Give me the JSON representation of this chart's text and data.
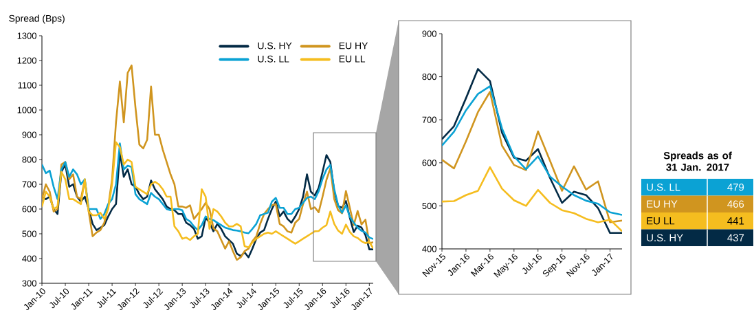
{
  "chart_data": [
    {
      "type": "line",
      "ylabel": "Spread (Bps)",
      "legend": "top right",
      "x": [
        "2010-01",
        "2010-02",
        "2010-03",
        "2010-04",
        "2010-05",
        "2010-06",
        "2010-07",
        "2010-08",
        "2010-09",
        "2010-10",
        "2010-11",
        "2010-12",
        "2011-01",
        "2011-02",
        "2011-03",
        "2011-04",
        "2011-05",
        "2011-06",
        "2011-07",
        "2011-08",
        "2011-09",
        "2011-10",
        "2011-11",
        "2011-12",
        "2012-01",
        "2012-02",
        "2012-03",
        "2012-04",
        "2012-05",
        "2012-06",
        "2012-07",
        "2012-08",
        "2012-09",
        "2012-10",
        "2012-11",
        "2012-12",
        "2013-01",
        "2013-02",
        "2013-03",
        "2013-04",
        "2013-05",
        "2013-06",
        "2013-07",
        "2013-08",
        "2013-09",
        "2013-10",
        "2013-11",
        "2013-12",
        "2014-01",
        "2014-02",
        "2014-03",
        "2014-04",
        "2014-05",
        "2014-06",
        "2014-07",
        "2014-08",
        "2014-09",
        "2014-10",
        "2014-11",
        "2014-12",
        "2015-01",
        "2015-02",
        "2015-03",
        "2015-04",
        "2015-05",
        "2015-06",
        "2015-07",
        "2015-08",
        "2015-09",
        "2015-10",
        "2015-11",
        "2015-12",
        "2016-01",
        "2016-02",
        "2016-03",
        "2016-04",
        "2016-05",
        "2016-06",
        "2016-07",
        "2016-08",
        "2016-09",
        "2016-10",
        "2016-11",
        "2016-12",
        "2017-01",
        "2017-02"
      ],
      "series": [
        {
          "name": "U.S. HY",
          "color": "#032a45",
          "values": [
            650,
            640,
            650,
            600,
            580,
            750,
            780,
            690,
            700,
            650,
            630,
            650,
            600,
            540,
            515,
            525,
            535,
            570,
            600,
            620,
            830,
            730,
            760,
            700,
            690,
            660,
            640,
            650,
            715,
            680,
            660,
            640,
            610,
            600,
            595,
            580,
            580,
            545,
            535,
            520,
            480,
            490,
            565,
            545,
            510,
            540,
            520,
            490,
            475,
            460,
            420,
            410,
            425,
            405,
            440,
            480,
            505,
            515,
            560,
            600,
            630,
            570,
            590,
            560,
            545,
            570,
            600,
            650,
            740,
            670,
            655,
            685,
            750,
            818,
            790,
            670,
            612,
            605,
            632,
            565,
            507,
            533,
            525,
            495,
            437,
            437
          ]
        },
        {
          "name": "EU HY",
          "color": "#d0951f",
          "values": [
            640,
            700,
            670,
            590,
            600,
            780,
            790,
            720,
            740,
            650,
            640,
            720,
            590,
            490,
            505,
            515,
            545,
            610,
            720,
            950,
            1115,
            950,
            1150,
            1180,
            1010,
            860,
            845,
            880,
            1095,
            900,
            900,
            840,
            790,
            740,
            700,
            610,
            610,
            605,
            615,
            560,
            580,
            600,
            625,
            600,
            522,
            510,
            475,
            440,
            470,
            430,
            395,
            405,
            430,
            440,
            470,
            490,
            540,
            580,
            600,
            615,
            620,
            540,
            530,
            510,
            505,
            545,
            560,
            620,
            670,
            600,
            607,
            587,
            650,
            718,
            765,
            640,
            595,
            583,
            673,
            605,
            535,
            592,
            538,
            557,
            462,
            466
          ]
        },
        {
          "name": "U.S. LL",
          "color": "#0ba2d4",
          "values": [
            780,
            745,
            755,
            690,
            640,
            760,
            790,
            730,
            760,
            740,
            700,
            720,
            600,
            600,
            600,
            560,
            580,
            620,
            640,
            700,
            865,
            760,
            775,
            770,
            660,
            640,
            630,
            620,
            665,
            650,
            640,
            620,
            600,
            595,
            600,
            600,
            595,
            560,
            550,
            530,
            515,
            535,
            570,
            560,
            555,
            545,
            535,
            525,
            520,
            515,
            513,
            510,
            505,
            502,
            520,
            540,
            575,
            580,
            585,
            630,
            645,
            605,
            605,
            580,
            580,
            600,
            605,
            625,
            645,
            650,
            640,
            672,
            722,
            760,
            778,
            680,
            615,
            585,
            615,
            568,
            545,
            525,
            512,
            505,
            485,
            479
          ]
        },
        {
          "name": "EU LL",
          "color": "#f5bd1f",
          "values": [
            610,
            670,
            650,
            600,
            610,
            750,
            720,
            640,
            640,
            630,
            620,
            720,
            590,
            575,
            575,
            585,
            560,
            600,
            700,
            870,
            850,
            780,
            800,
            790,
            690,
            680,
            670,
            660,
            700,
            710,
            700,
            680,
            650,
            650,
            530,
            510,
            480,
            485,
            475,
            490,
            500,
            680,
            650,
            520,
            600,
            590,
            570,
            545,
            530,
            530,
            540,
            530,
            450,
            445,
            465,
            480,
            490,
            500,
            505,
            500,
            510,
            500,
            490,
            480,
            470,
            460,
            470,
            480,
            490,
            500,
            510,
            511,
            525,
            535,
            590,
            540,
            513,
            500,
            537,
            507,
            490,
            483,
            470,
            462,
            468,
            441
          ]
        }
      ],
      "xlim": [
        "2010-01",
        "2017-02"
      ],
      "ylim": [
        300,
        1300
      ],
      "yticks": [
        300,
        400,
        500,
        600,
        700,
        800,
        900,
        1000,
        1100,
        1200,
        1300
      ],
      "xticks": [
        {
          "value": "2010-01",
          "label": "Jan-10"
        },
        {
          "value": "2010-07",
          "label": "Jul-10"
        },
        {
          "value": "2011-01",
          "label": "Jan-11"
        },
        {
          "value": "2011-07",
          "label": "Jul-11"
        },
        {
          "value": "2012-01",
          "label": "Jan-12"
        },
        {
          "value": "2012-07",
          "label": "Jul-12"
        },
        {
          "value": "2013-01",
          "label": "Jan-13"
        },
        {
          "value": "2013-07",
          "label": "Jul-13"
        },
        {
          "value": "2014-01",
          "label": "Jan-14"
        },
        {
          "value": "2014-07",
          "label": "Jul-14"
        },
        {
          "value": "2015-01",
          "label": "Jan-15"
        },
        {
          "value": "2015-07",
          "label": "Jul-15"
        },
        {
          "value": "2016-01",
          "label": "Jan-16"
        },
        {
          "value": "2016-07",
          "label": "Jul-16"
        },
        {
          "value": "2017-01",
          "label": "Jan-17"
        }
      ]
    },
    {
      "type": "line",
      "x": [
        "2015-11",
        "2015-12",
        "2016-01",
        "2016-02",
        "2016-03",
        "2016-04",
        "2016-05",
        "2016-06",
        "2016-07",
        "2016-08",
        "2016-09",
        "2016-10",
        "2016-11",
        "2016-12",
        "2017-01",
        "2017-02"
      ],
      "series": [
        {
          "color": "#032a45",
          "values": [
            655,
            685,
            750,
            818,
            790,
            670,
            612,
            605,
            632,
            565,
            507,
            533,
            525,
            495,
            437,
            437
          ]
        },
        {
          "color": "#d0951f",
          "values": [
            607,
            587,
            650,
            718,
            765,
            640,
            595,
            583,
            673,
            605,
            535,
            592,
            538,
            557,
            462,
            466
          ]
        },
        {
          "color": "#0ba2d4",
          "values": [
            640,
            672,
            722,
            760,
            778,
            680,
            615,
            585,
            615,
            568,
            545,
            525,
            512,
            505,
            485,
            479
          ]
        },
        {
          "color": "#f5bd1f",
          "values": [
            510,
            511,
            525,
            535,
            590,
            540,
            513,
            500,
            537,
            507,
            490,
            483,
            470,
            462,
            468,
            441
          ]
        }
      ],
      "xlim": [
        "2015-11",
        "2017-02"
      ],
      "ylim": [
        400,
        900
      ],
      "yticks": [
        400,
        500,
        600,
        700,
        800,
        900
      ],
      "xticks": [
        {
          "value": "2015-11",
          "label": "Nov-15"
        },
        {
          "value": "2016-01",
          "label": "Jan-16"
        },
        {
          "value": "2016-03",
          "label": "Mar-16"
        },
        {
          "value": "2016-05",
          "label": "May-16"
        },
        {
          "value": "2016-07",
          "label": "Jul-16"
        },
        {
          "value": "2016-09",
          "label": "Sep-16"
        },
        {
          "value": "2016-11",
          "label": "Nov-16"
        },
        {
          "value": "2017-01",
          "label": "Jan-17"
        }
      ]
    },
    {
      "type": "other",
      "title": "Spreads as of 31 Jan. 2017",
      "data_labels": true,
      "categories": [
        "U.S. LL",
        "EU HY",
        "EU LL",
        "U.S. HY"
      ],
      "values": [
        479,
        466,
        441,
        437
      ],
      "colors": [
        "#0ba2d4",
        "#d0951f",
        "#f5bd1f",
        "#032a45"
      ]
    }
  ]
}
